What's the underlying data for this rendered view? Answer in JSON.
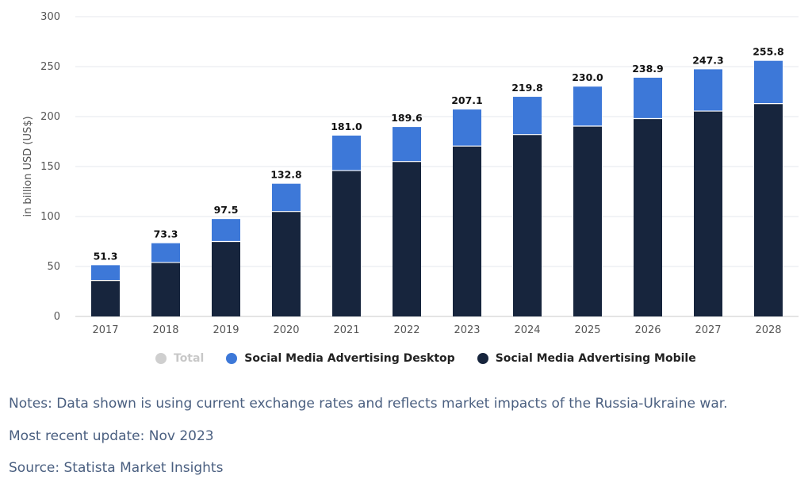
{
  "chart_data": {
    "type": "bar",
    "stacked": true,
    "categories": [
      "2017",
      "2018",
      "2019",
      "2020",
      "2021",
      "2022",
      "2023",
      "2024",
      "2025",
      "2026",
      "2027",
      "2028"
    ],
    "series": [
      {
        "name": "Social Media Advertising Mobile",
        "color": "#17253d",
        "values": [
          36.0,
          54.0,
          75.0,
          105.0,
          146.0,
          155.0,
          170.5,
          182.0,
          190.5,
          198.0,
          205.5,
          213.0
        ]
      },
      {
        "name": "Social Media Advertising Desktop",
        "color": "#3d78d8",
        "values": [
          15.3,
          19.3,
          22.5,
          27.8,
          35.0,
          34.6,
          36.6,
          37.8,
          39.5,
          40.9,
          41.8,
          42.8
        ]
      }
    ],
    "totals": [
      "51.3",
      "73.3",
      "97.5",
      "132.8",
      "181.0",
      "189.6",
      "207.1",
      "219.8",
      "230.0",
      "238.9",
      "247.3",
      "255.8"
    ],
    "ylabel": "in billion USD (US$)",
    "ylim": [
      0,
      300
    ],
    "yticks": [
      "0",
      "50",
      "100",
      "150",
      "200",
      "250",
      "300"
    ],
    "grid": true,
    "legend_position": "bottom"
  },
  "legend": {
    "items": [
      {
        "label": "Total",
        "color": "#cfcfcf",
        "active": false
      },
      {
        "label": "Social Media Advertising Desktop",
        "color": "#3d78d8",
        "active": true
      },
      {
        "label": "Social Media Advertising Mobile",
        "color": "#17253d",
        "active": true
      }
    ]
  },
  "footer": {
    "notes": "Notes: Data shown is using current exchange rates and reflects market impacts of the Russia-Ukraine war.",
    "update": "Most recent update: Nov 2023",
    "source": "Source: Statista Market Insights"
  }
}
